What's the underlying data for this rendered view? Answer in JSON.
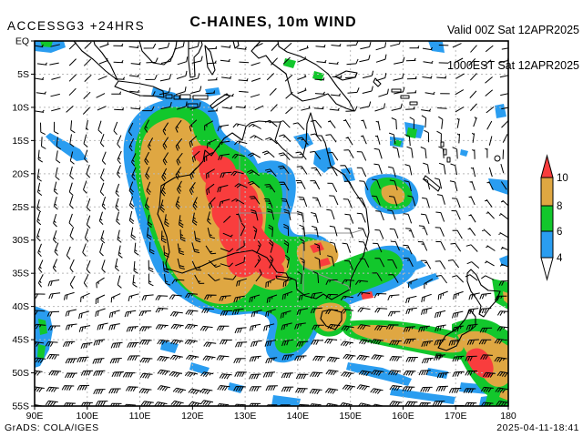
{
  "header": {
    "model": "ACCESSG3 +24HRS",
    "title": "C-HAINES, 10m WIND",
    "valid1": "Valid 00Z Sat 12APR2025",
    "valid2": "1000EST Sat 12APR2025"
  },
  "footer": {
    "left": "GrADS: COLA/IGES",
    "right": "2025-04-11-18:41"
  },
  "axes": {
    "lat_labels": [
      "EQ",
      "5S",
      "10S",
      "15S",
      "20S",
      "25S",
      "30S",
      "35S",
      "40S",
      "45S",
      "50S",
      "55S"
    ],
    "lon_labels": [
      "90E",
      "100E",
      "110E",
      "120E",
      "130E",
      "140E",
      "150E",
      "160E",
      "170E",
      "180"
    ]
  },
  "colorbar": {
    "tick_labels": [
      "10",
      "8",
      "6",
      "4"
    ],
    "band_colors": [
      "#dfa742",
      "#12c72c",
      "#2a9df0"
    ],
    "arrow_top_color": "#f93d3d",
    "arrow_bottom_color": "#ffffff"
  },
  "colors": {
    "red": "#f93d3d",
    "orange": "#dfa742",
    "green": "#12c72c",
    "blue": "#2a9df0",
    "graticule": "#b9b9b9",
    "state_border": "#909090",
    "coast": "#000000"
  },
  "chart_data": {
    "type": "heatmap",
    "title": "C-HAINES, 10m WIND",
    "model": "ACCESSG3",
    "forecast_hour": "+24HRS",
    "valid_utc": "00Z Sat 12APR2025",
    "valid_local": "1000EST Sat 12APR2025",
    "xlim": [
      90,
      180
    ],
    "ylim": [
      -55,
      0
    ],
    "x_ticks": [
      "90E",
      "100E",
      "110E",
      "120E",
      "130E",
      "140E",
      "150E",
      "160E",
      "170E",
      "180"
    ],
    "y_ticks": [
      "EQ",
      "5S",
      "10S",
      "15S",
      "20S",
      "25S",
      "30S",
      "35S",
      "40S",
      "45S",
      "50S",
      "55S"
    ],
    "grid": true,
    "legend_position": "right",
    "levels": [
      4,
      6,
      8,
      10
    ],
    "level_colors": [
      "#2a9df0",
      "#12c72c",
      "#dfa742",
      "#f93d3d"
    ],
    "shaded_regions": [
      {
        "value": ">10",
        "color": "#f93d3d",
        "area": "interior Western Australia ~118-131E 20-31S; small patches NW Victoria and New Zealand South Island west coast"
      },
      {
        "value": "8-10",
        "color": "#dfa742",
        "area": "broad ring around WA core; Victoria; Tasmania; band ~40-43S from Tasmania to New Zealand; Coral Sea patch ~156E 23S"
      },
      {
        "value": "6-8",
        "color": "#12c72c",
        "area": "ring around orange regions; specks over southern PNG and far southwest corner of domain"
      },
      {
        "value": "4-6",
        "color": "#2a9df0",
        "area": "outer fringe from NW shelf across central/SE Australia and Tasman Sea; scattered patches Coral Sea, Southern Ocean, around New Zealand"
      }
    ],
    "wind_overlay": "10 m wind barbs ~2.5 deg spacing: tropical easterlies north of ~12S, clockwise circulation around the WA heat trough, strengthening westerlies south of ~40S"
  }
}
